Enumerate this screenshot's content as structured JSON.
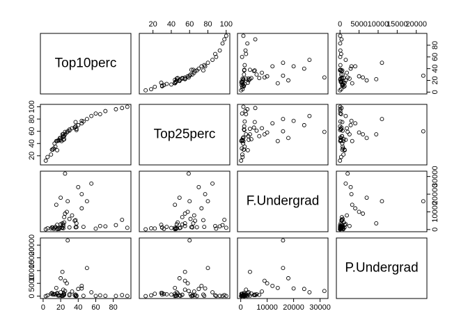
{
  "chart_data": {
    "type": "scatter_matrix",
    "point_color": "#000000",
    "variables": [
      {
        "name": "Top10perc",
        "lim": [
          1,
          96
        ],
        "ticks": [
          0,
          20,
          40,
          60,
          80
        ],
        "values": [
          23,
          16,
          22,
          60,
          16,
          38,
          17,
          37,
          30,
          21,
          37,
          44,
          38,
          44,
          23,
          9,
          83,
          19,
          14,
          24,
          25,
          20,
          20,
          24,
          46,
          12,
          23,
          25,
          36,
          5,
          10,
          13,
          15,
          22,
          30,
          40,
          50,
          65,
          71,
          90,
          96,
          3,
          28,
          18,
          33,
          55,
          11,
          27
        ]
      },
      {
        "name": "Top25perc",
        "lim": [
          9,
          100
        ],
        "ticks": [
          20,
          40,
          60,
          80,
          100
        ],
        "values": [
          52,
          29,
          50,
          89,
          44,
          62,
          45,
          68,
          63,
          44,
          75,
          77,
          64,
          73,
          46,
          22,
          96,
          49,
          35,
          47,
          55,
          46,
          49,
          52,
          76,
          32,
          55,
          59,
          66,
          18,
          30,
          40,
          44,
          55,
          61,
          70,
          80,
          88,
          93,
          98,
          100,
          12,
          60,
          45,
          65,
          85,
          30,
          58
        ]
      },
      {
        "name": "F.Undergrad",
        "lim": [
          139,
          31643
        ],
        "ticks": [
          0,
          10000,
          20000,
          30000
        ],
        "values": [
          2885,
          2683,
          1036,
          510,
          249,
          1376,
          678,
          1317,
          1228,
          1025,
          5300,
          20000,
          3500,
          12000,
          700,
          600,
          2500,
          800,
          1500,
          4000,
          9000,
          3000,
          18000,
          7000,
          1500,
          400,
          2000,
          31643,
          5000,
          700,
          1200,
          900,
          14000,
          3500,
          6000,
          24000,
          16000,
          2000,
          1800,
          5500,
          1000,
          139,
          16000,
          300,
          8000,
          26000,
          1100,
          10000
        ]
      },
      {
        "name": "P.Undergrad",
        "lim": [
          1,
          21836
        ],
        "ticks": [
          0,
          5000,
          10000,
          15000,
          20000
        ],
        "values": [
          537,
          1227,
          99,
          63,
          869,
          41,
          230,
          32,
          306,
          78,
          600,
          3000,
          200,
          4000,
          150,
          900,
          50,
          300,
          700,
          1000,
          6000,
          1500,
          7000,
          500,
          100,
          800,
          2500,
          2000,
          400,
          300,
          1200,
          600,
          3200,
          9500,
          700,
          2800,
          11000,
          300,
          100,
          400,
          50,
          1,
          21836,
          200,
          1800,
          1500,
          600,
          5000
        ]
      }
    ]
  }
}
